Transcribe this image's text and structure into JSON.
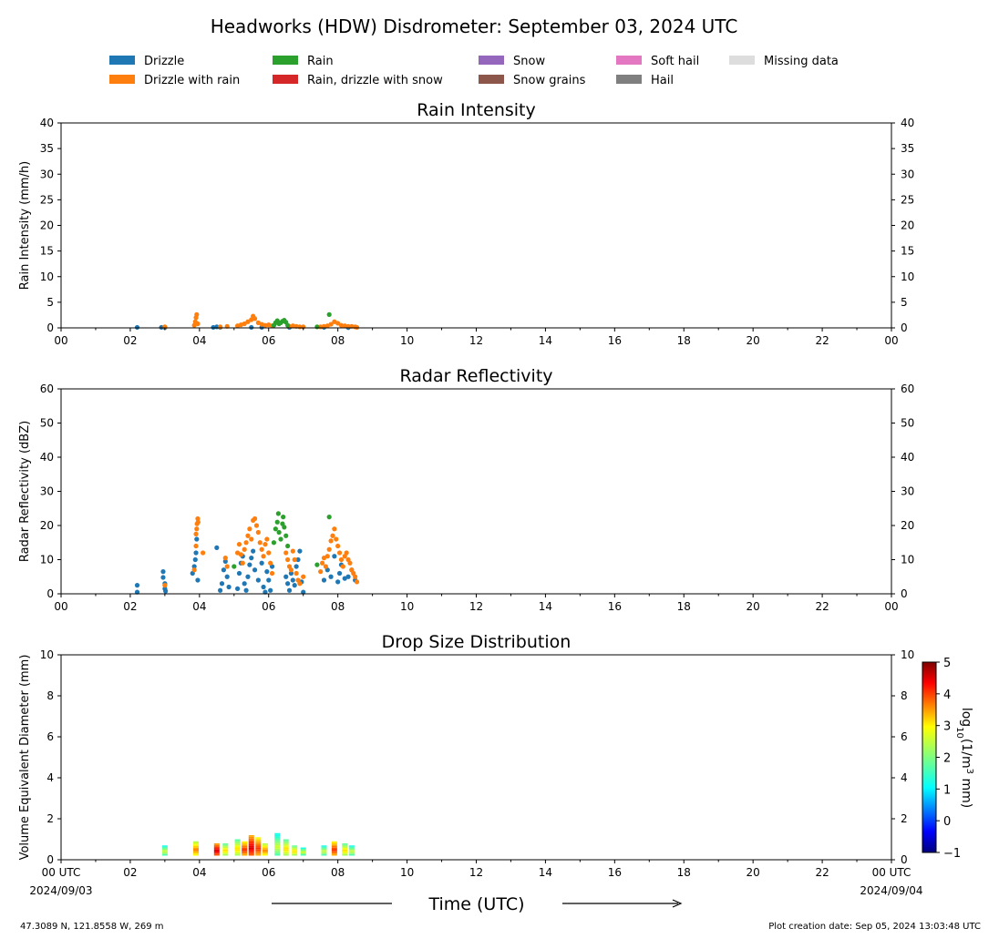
{
  "title": "Headworks (HDW) Disdrometer: September 03, 2024 UTC",
  "legend": [
    {
      "label": "Drizzle",
      "color": "#1f77b4"
    },
    {
      "label": "Drizzle with rain",
      "color": "#ff7f0e"
    },
    {
      "label": "Rain",
      "color": "#2ca02c"
    },
    {
      "label": "Rain, drizzle with snow",
      "color": "#d62728"
    },
    {
      "label": "Snow",
      "color": "#9467bd"
    },
    {
      "label": "Snow grains",
      "color": "#8c564b"
    },
    {
      "label": "Soft hail",
      "color": "#e377c2"
    },
    {
      "label": "Hail",
      "color": "#7f7f7f"
    },
    {
      "label": "Missing data",
      "color": "#dddddd"
    }
  ],
  "xlabel": "Time (UTC)",
  "location": "47.3089 N, 121.8558 W, 269 m",
  "creation": "Plot creation date: Sep 05, 2024 13:03:48 UTC",
  "x_ticks": [
    "00",
    "02",
    "04",
    "06",
    "08",
    "10",
    "12",
    "14",
    "16",
    "18",
    "20",
    "22",
    "00"
  ],
  "bottom_x_ticks": [
    "00 UTC",
    "02",
    "04",
    "06",
    "08",
    "10",
    "12",
    "14",
    "16",
    "18",
    "20",
    "22",
    "00 UTC"
  ],
  "bottom_dates": {
    "start": "2024/09/03",
    "end": "2024/09/04"
  },
  "colorbar": {
    "label": "log10(1/m3 mm)",
    "ticks": [
      "−1",
      "0",
      "1",
      "2",
      "3",
      "4",
      "5"
    ],
    "range": [
      -1,
      5
    ],
    "colormap": "jet"
  },
  "chart_data": [
    {
      "type": "scatter",
      "title": "Rain Intensity",
      "ylabel": "Rain Intensity (mm/h)",
      "xlim": [
        0,
        24
      ],
      "ylim": [
        0,
        40
      ],
      "yticks": [
        "0",
        "5",
        "10",
        "15",
        "20",
        "25",
        "30",
        "35",
        "40"
      ],
      "series": [
        {
          "name": "Drizzle",
          "color": "#1f77b4",
          "points": [
            [
              2.2,
              0.1
            ],
            [
              2.9,
              0.1
            ],
            [
              3.0,
              0.05
            ],
            [
              4.4,
              0.1
            ],
            [
              4.5,
              0.2
            ],
            [
              4.6,
              0.1
            ],
            [
              5.5,
              0.1
            ],
            [
              5.8,
              0.1
            ],
            [
              6.6,
              0.1
            ],
            [
              7.6,
              0.1
            ],
            [
              8.3,
              0.05
            ]
          ]
        },
        {
          "name": "Drizzle with rain",
          "color": "#ff7f0e",
          "points": [
            [
              3.0,
              0.2
            ],
            [
              3.85,
              0.5
            ],
            [
              3.88,
              1.2
            ],
            [
              3.9,
              2.0
            ],
            [
              3.92,
              2.6
            ],
            [
              3.95,
              0.8
            ],
            [
              4.6,
              0.2
            ],
            [
              4.8,
              0.3
            ],
            [
              5.1,
              0.4
            ],
            [
              5.2,
              0.6
            ],
            [
              5.3,
              0.8
            ],
            [
              5.4,
              1.2
            ],
            [
              5.5,
              1.6
            ],
            [
              5.55,
              2.3
            ],
            [
              5.6,
              1.8
            ],
            [
              5.7,
              1.0
            ],
            [
              5.8,
              0.7
            ],
            [
              5.9,
              0.5
            ],
            [
              6.0,
              0.6
            ],
            [
              6.1,
              0.4
            ],
            [
              6.6,
              0.3
            ],
            [
              6.7,
              0.4
            ],
            [
              6.8,
              0.3
            ],
            [
              6.9,
              0.2
            ],
            [
              7.0,
              0.2
            ],
            [
              7.5,
              0.2
            ],
            [
              7.6,
              0.3
            ],
            [
              7.7,
              0.4
            ],
            [
              7.8,
              0.7
            ],
            [
              7.9,
              1.2
            ],
            [
              8.0,
              0.9
            ],
            [
              8.1,
              0.5
            ],
            [
              8.2,
              0.4
            ],
            [
              8.3,
              0.3
            ],
            [
              8.4,
              0.3
            ],
            [
              8.5,
              0.2
            ],
            [
              8.55,
              0.1
            ]
          ]
        },
        {
          "name": "Rain",
          "color": "#2ca02c",
          "points": [
            [
              6.15,
              0.5
            ],
            [
              6.2,
              1.0
            ],
            [
              6.25,
              1.4
            ],
            [
              6.3,
              0.8
            ],
            [
              6.35,
              1.0
            ],
            [
              6.4,
              1.3
            ],
            [
              6.45,
              1.5
            ],
            [
              6.5,
              1.1
            ],
            [
              6.55,
              0.5
            ],
            [
              7.75,
              2.6
            ],
            [
              7.4,
              0.2
            ]
          ]
        }
      ]
    },
    {
      "type": "scatter",
      "title": "Radar Reflectivity",
      "ylabel": "Radar Reflectivity (dBZ)",
      "xlim": [
        0,
        24
      ],
      "ylim": [
        0,
        60
      ],
      "yticks": [
        "0",
        "10",
        "20",
        "30",
        "40",
        "50",
        "60"
      ],
      "series": [
        {
          "name": "Drizzle",
          "color": "#1f77b4",
          "points": [
            [
              2.2,
              2.5
            ],
            [
              2.2,
              0.5
            ],
            [
              2.95,
              6.5
            ],
            [
              2.95,
              4.8
            ],
            [
              3.0,
              3.0
            ],
            [
              3.0,
              1.5
            ],
            [
              3.02,
              0.8
            ],
            [
              3.8,
              6.0
            ],
            [
              3.85,
              8.0
            ],
            [
              3.88,
              10.0
            ],
            [
              3.9,
              12.0
            ],
            [
              3.92,
              16.0
            ],
            [
              3.95,
              4.0
            ],
            [
              4.5,
              13.5
            ],
            [
              4.6,
              1.0
            ],
            [
              4.65,
              3.0
            ],
            [
              4.7,
              7.0
            ],
            [
              4.75,
              9.5
            ],
            [
              4.8,
              5.0
            ],
            [
              4.85,
              2.0
            ],
            [
              5.1,
              1.5
            ],
            [
              5.15,
              6.0
            ],
            [
              5.2,
              9.0
            ],
            [
              5.25,
              11.0
            ],
            [
              5.3,
              3.0
            ],
            [
              5.35,
              1.0
            ],
            [
              5.4,
              5.0
            ],
            [
              5.45,
              8.5
            ],
            [
              5.5,
              10.5
            ],
            [
              5.55,
              12.5
            ],
            [
              5.6,
              7.0
            ],
            [
              5.7,
              4.0
            ],
            [
              5.8,
              9.0
            ],
            [
              5.85,
              2.0
            ],
            [
              5.9,
              0.5
            ],
            [
              5.95,
              6.5
            ],
            [
              6.0,
              4.0
            ],
            [
              6.05,
              1.0
            ],
            [
              6.1,
              8.0
            ],
            [
              6.5,
              5.0
            ],
            [
              6.55,
              3.0
            ],
            [
              6.6,
              1.0
            ],
            [
              6.65,
              6.0
            ],
            [
              6.7,
              4.0
            ],
            [
              6.75,
              2.5
            ],
            [
              6.8,
              8.0
            ],
            [
              6.85,
              10.0
            ],
            [
              6.9,
              12.5
            ],
            [
              6.95,
              3.5
            ],
            [
              7.0,
              0.5
            ],
            [
              7.6,
              4.0
            ],
            [
              7.7,
              7.0
            ],
            [
              7.8,
              5.0
            ],
            [
              7.9,
              11.0
            ],
            [
              8.0,
              3.5
            ],
            [
              8.05,
              6.0
            ],
            [
              8.1,
              8.5
            ],
            [
              8.2,
              4.5
            ],
            [
              8.3,
              5.0
            ],
            [
              8.4,
              7.0
            ],
            [
              8.5,
              4.0
            ]
          ]
        },
        {
          "name": "Drizzle with rain",
          "color": "#ff7f0e",
          "points": [
            [
              3.0,
              2.5
            ],
            [
              3.85,
              7.0
            ],
            [
              3.9,
              14.0
            ],
            [
              3.9,
              17.5
            ],
            [
              3.92,
              19.0
            ],
            [
              3.93,
              20.5
            ],
            [
              3.95,
              22.0
            ],
            [
              3.96,
              21.0
            ],
            [
              4.1,
              12.0
            ],
            [
              4.75,
              10.5
            ],
            [
              4.8,
              8.0
            ],
            [
              5.1,
              12.0
            ],
            [
              5.15,
              14.5
            ],
            [
              5.2,
              11.5
            ],
            [
              5.25,
              9.0
            ],
            [
              5.3,
              13.0
            ],
            [
              5.35,
              15.0
            ],
            [
              5.4,
              17.0
            ],
            [
              5.45,
              19.0
            ],
            [
              5.5,
              16.0
            ],
            [
              5.55,
              21.5
            ],
            [
              5.6,
              22.0
            ],
            [
              5.65,
              20.0
            ],
            [
              5.7,
              18.0
            ],
            [
              5.75,
              15.0
            ],
            [
              5.8,
              13.0
            ],
            [
              5.85,
              11.0
            ],
            [
              5.9,
              14.5
            ],
            [
              5.95,
              16.0
            ],
            [
              6.0,
              12.0
            ],
            [
              6.05,
              9.0
            ],
            [
              6.1,
              6.0
            ],
            [
              6.5,
              12.0
            ],
            [
              6.55,
              10.0
            ],
            [
              6.6,
              8.0
            ],
            [
              6.65,
              7.0
            ],
            [
              6.7,
              12.5
            ],
            [
              6.75,
              10.0
            ],
            [
              6.8,
              6.0
            ],
            [
              6.85,
              4.0
            ],
            [
              6.9,
              3.0
            ],
            [
              7.0,
              5.0
            ],
            [
              7.5,
              6.5
            ],
            [
              7.55,
              9.0
            ],
            [
              7.6,
              10.5
            ],
            [
              7.65,
              8.0
            ],
            [
              7.7,
              11.0
            ],
            [
              7.75,
              13.0
            ],
            [
              7.8,
              15.5
            ],
            [
              7.85,
              17.0
            ],
            [
              7.9,
              19.0
            ],
            [
              7.95,
              16.0
            ],
            [
              8.0,
              14.0
            ],
            [
              8.05,
              12.0
            ],
            [
              8.1,
              10.0
            ],
            [
              8.15,
              8.0
            ],
            [
              8.2,
              11.0
            ],
            [
              8.25,
              12.0
            ],
            [
              8.3,
              10.0
            ],
            [
              8.35,
              9.0
            ],
            [
              8.4,
              7.0
            ],
            [
              8.45,
              6.0
            ],
            [
              8.5,
              5.0
            ],
            [
              8.55,
              3.5
            ]
          ]
        },
        {
          "name": "Rain",
          "color": "#2ca02c",
          "points": [
            [
              5.0,
              8.0
            ],
            [
              6.15,
              15.0
            ],
            [
              6.2,
              19.0
            ],
            [
              6.25,
              21.0
            ],
            [
              6.28,
              23.5
            ],
            [
              6.3,
              18.0
            ],
            [
              6.35,
              16.0
            ],
            [
              6.4,
              20.5
            ],
            [
              6.42,
              22.5
            ],
            [
              6.45,
              19.5
            ],
            [
              6.5,
              17.0
            ],
            [
              6.55,
              14.0
            ],
            [
              7.4,
              8.5
            ],
            [
              7.75,
              22.5
            ]
          ]
        }
      ]
    },
    {
      "type": "heatmap",
      "title": "Drop Size Distribution",
      "ylabel": "Volume Equivalent Diameter (mm)",
      "xlim": [
        0,
        24
      ],
      "ylim": [
        0,
        10
      ],
      "yticks": [
        "0",
        "2",
        "4",
        "6",
        "8",
        "10"
      ],
      "columns": [
        {
          "t": 3.0,
          "dmax": 0.7,
          "logN": 2.5
        },
        {
          "t": 3.9,
          "dmax": 0.9,
          "logN": 3.5
        },
        {
          "t": 4.5,
          "dmax": 0.8,
          "logN": 4.5
        },
        {
          "t": 4.75,
          "dmax": 0.8,
          "logN": 3.0
        },
        {
          "t": 5.1,
          "dmax": 1.0,
          "logN": 3.0
        },
        {
          "t": 5.3,
          "dmax": 0.9,
          "logN": 4.0
        },
        {
          "t": 5.5,
          "dmax": 1.2,
          "logN": 4.5
        },
        {
          "t": 5.7,
          "dmax": 1.1,
          "logN": 4.0
        },
        {
          "t": 5.9,
          "dmax": 0.8,
          "logN": 3.5
        },
        {
          "t": 6.25,
          "dmax": 1.3,
          "logN": 2.5
        },
        {
          "t": 6.5,
          "dmax": 1.0,
          "logN": 3.0
        },
        {
          "t": 6.75,
          "dmax": 0.7,
          "logN": 3.0
        },
        {
          "t": 7.0,
          "dmax": 0.6,
          "logN": 2.5
        },
        {
          "t": 7.6,
          "dmax": 0.7,
          "logN": 2.5
        },
        {
          "t": 7.9,
          "dmax": 0.9,
          "logN": 4.0
        },
        {
          "t": 8.2,
          "dmax": 0.8,
          "logN": 3.0
        },
        {
          "t": 8.4,
          "dmax": 0.7,
          "logN": 2.5
        }
      ]
    }
  ]
}
